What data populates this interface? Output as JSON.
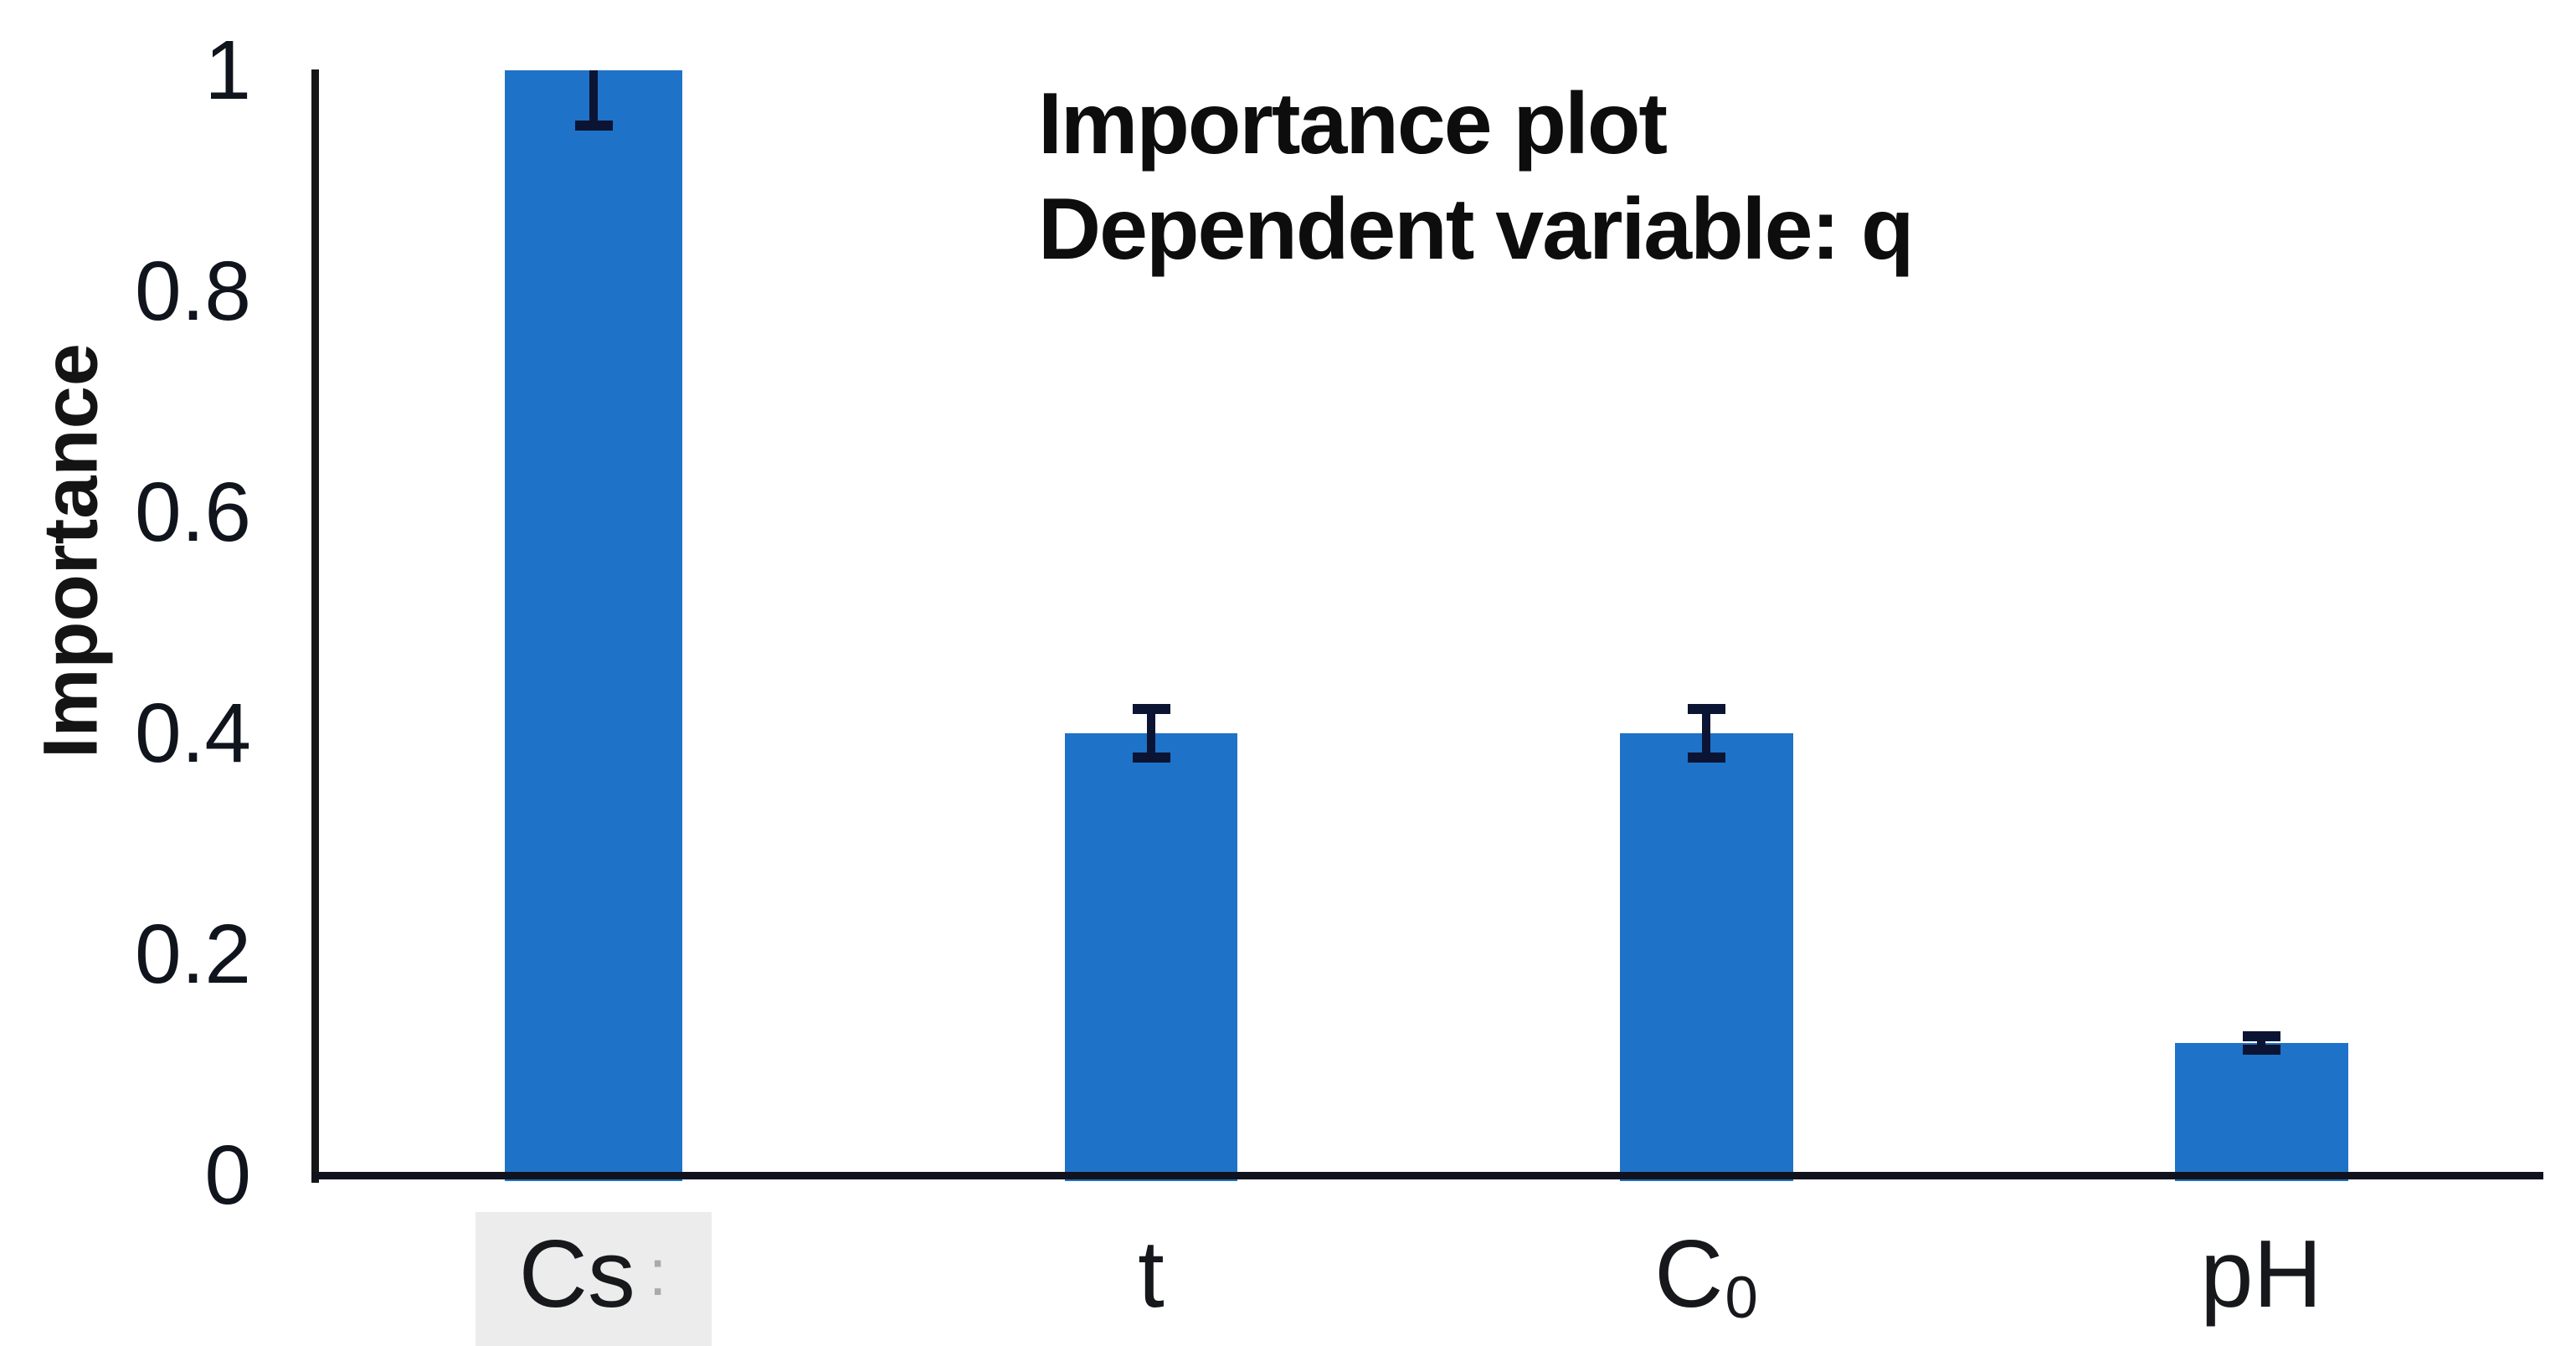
{
  "chart_data": {
    "type": "bar",
    "title": "Importance plot",
    "subtitle": "Dependent variable: q",
    "ylabel": "Importance",
    "xlabel": "",
    "categories": [
      {
        "label": "Cs",
        "subscript": "",
        "highlighted": true,
        "faint_mark": ":"
      },
      {
        "label": "t",
        "subscript": "",
        "highlighted": false,
        "faint_mark": ""
      },
      {
        "label": "C",
        "subscript": "0",
        "highlighted": false,
        "faint_mark": ""
      },
      {
        "label": "pH",
        "subscript": "",
        "highlighted": false,
        "faint_mark": ""
      }
    ],
    "values": [
      1.0,
      0.4,
      0.4,
      0.12
    ],
    "errors": [
      0.05,
      0.022,
      0.022,
      0.006
    ],
    "error_cap_style": [
      "lower_only",
      "both",
      "both",
      "both"
    ],
    "ylim": [
      0,
      1
    ],
    "yticks": [
      {
        "label": "0",
        "value": 0
      },
      {
        "label": "0.2",
        "value": 0.2
      },
      {
        "label": "0.4",
        "value": 0.4
      },
      {
        "label": "0.6",
        "value": 0.6
      },
      {
        "label": "0.8",
        "value": 0.8
      },
      {
        "label": "1",
        "value": 1
      }
    ],
    "grid": false,
    "legend": "none",
    "colors": {
      "bar": "#1e72c8",
      "error_bar": "#0c1433",
      "axis": "#161616",
      "text": "#10141c",
      "category_highlight": "#ececec",
      "faint_mark": "#aaaaaa"
    }
  }
}
